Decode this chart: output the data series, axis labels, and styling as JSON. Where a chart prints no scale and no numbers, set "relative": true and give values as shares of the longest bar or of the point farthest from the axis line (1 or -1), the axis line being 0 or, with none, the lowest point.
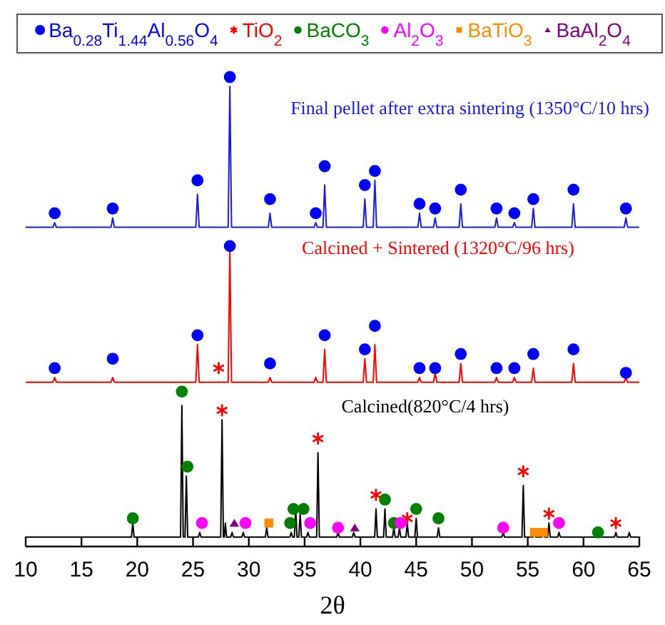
{
  "chart_data": {
    "type": "line",
    "relative": true,
    "xlabel": "2θ",
    "xlim": [
      10,
      65
    ],
    "xticks": [
      10,
      15,
      20,
      25,
      30,
      35,
      40,
      45,
      50,
      55,
      60,
      65
    ],
    "legend": "top",
    "series": [
      {
        "name": "Final pellet after extra sintering (1350°C/10 hrs)",
        "color": "#1a1ae6",
        "marker": "none",
        "x": [
          10,
          12.45,
          12.6,
          12.75,
          17.65,
          17.8,
          17.95,
          25.25,
          25.4,
          25.55,
          28.15,
          28.3,
          28.45,
          31.75,
          31.9,
          32.05,
          35.85,
          36.0,
          36.15,
          36.65,
          36.8,
          36.95,
          40.25,
          40.4,
          40.55,
          41.15,
          41.3,
          41.45,
          45.15,
          45.3,
          45.45,
          46.55,
          46.7,
          46.85,
          48.85,
          49.0,
          49.15,
          52.05,
          52.2,
          52.35,
          53.65,
          53.8,
          53.95,
          55.35,
          55.5,
          55.65,
          58.95,
          59.1,
          59.25,
          63.65,
          63.8,
          63.95,
          65
        ],
        "values": [
          0.68,
          0.68,
          0.69,
          0.68,
          0.68,
          0.7,
          0.68,
          0.68,
          0.75,
          0.68,
          0.68,
          0.98,
          0.68,
          0.68,
          0.71,
          0.68,
          0.68,
          0.69,
          0.68,
          0.68,
          0.77,
          0.68,
          0.68,
          0.74,
          0.68,
          0.68,
          0.78,
          0.68,
          0.68,
          0.71,
          0.68,
          0.68,
          0.7,
          0.68,
          0.68,
          0.73,
          0.68,
          0.68,
          0.7,
          0.68,
          0.68,
          0.69,
          0.68,
          0.68,
          0.72,
          0.68,
          0.68,
          0.73,
          0.68,
          0.68,
          0.7,
          0.68,
          0.68
        ]
      },
      {
        "name": "Calcined + Sintered (1320°C/96 hrs)",
        "color": "#ff0000",
        "marker": "none",
        "x": [
          10,
          12.45,
          12.6,
          12.75,
          17.65,
          17.8,
          17.95,
          25.25,
          25.4,
          25.55,
          28.15,
          28.3,
          28.45,
          31.75,
          31.9,
          32.05,
          35.85,
          36.0,
          36.15,
          36.65,
          36.8,
          36.95,
          40.25,
          40.4,
          40.55,
          41.15,
          41.3,
          41.45,
          45.15,
          45.3,
          45.45,
          46.55,
          46.7,
          46.85,
          48.85,
          49.0,
          49.15,
          52.05,
          52.2,
          52.35,
          53.65,
          53.8,
          53.95,
          55.35,
          55.5,
          55.65,
          58.95,
          59.1,
          59.25,
          63.65,
          63.8,
          63.95,
          65
        ],
        "values": [
          0.35,
          0.35,
          0.36,
          0.35,
          0.35,
          0.36,
          0.35,
          0.35,
          0.43,
          0.35,
          0.35,
          0.63,
          0.35,
          0.35,
          0.36,
          0.35,
          0.35,
          0.36,
          0.35,
          0.35,
          0.42,
          0.35,
          0.35,
          0.4,
          0.35,
          0.35,
          0.43,
          0.35,
          0.35,
          0.36,
          0.35,
          0.35,
          0.37,
          0.35,
          0.35,
          0.39,
          0.35,
          0.35,
          0.36,
          0.35,
          0.35,
          0.36,
          0.35,
          0.35,
          0.38,
          0.35,
          0.35,
          0.39,
          0.35,
          0.35,
          0.36,
          0.35,
          0.35
        ]
      },
      {
        "name": "Calcined(820°C/4 hrs)",
        "color": "#000000",
        "marker": "none",
        "x": [
          10,
          19.48,
          19.6,
          19.72,
          23.88,
          24.0,
          24.12,
          24.28,
          24.4,
          24.52,
          25.48,
          25.6,
          25.72,
          27.48,
          27.6,
          27.72,
          27.8,
          27.9,
          28.0,
          28.38,
          28.5,
          28.62,
          29.38,
          29.5,
          29.62,
          31.48,
          31.6,
          31.72,
          33.68,
          33.8,
          33.92,
          34.08,
          34.2,
          34.32,
          34.48,
          34.6,
          34.72,
          35.18,
          35.3,
          35.42,
          36.08,
          36.2,
          36.32,
          37.88,
          38.0,
          38.12,
          39.28,
          39.4,
          39.52,
          41.28,
          41.4,
          41.52,
          42.08,
          42.2,
          42.32,
          42.88,
          43.0,
          43.12,
          43.38,
          43.5,
          43.62,
          44.08,
          44.2,
          44.32,
          44.88,
          45.0,
          45.12,
          46.88,
          47.0,
          47.12,
          52.68,
          52.8,
          52.92,
          54.48,
          54.6,
          54.72,
          55.48,
          55.6,
          55.72,
          56.28,
          56.4,
          56.52,
          56.78,
          56.9,
          57.02,
          57.68,
          57.8,
          57.92,
          62.78,
          62.9,
          63.02,
          63.98,
          64.1,
          64.22,
          65
        ],
        "values": [
          0.02,
          0.02,
          0.05,
          0.02,
          0.02,
          0.3,
          0.02,
          0.02,
          0.15,
          0.02,
          0.02,
          0.03,
          0.02,
          0.02,
          0.27,
          0.02,
          0.02,
          0.05,
          0.02,
          0.02,
          0.03,
          0.02,
          0.02,
          0.03,
          0.02,
          0.02,
          0.04,
          0.02,
          0.02,
          0.03,
          0.02,
          0.02,
          0.08,
          0.02,
          0.02,
          0.07,
          0.02,
          0.02,
          0.03,
          0.02,
          0.02,
          0.2,
          0.02,
          0.02,
          0.03,
          0.02,
          0.02,
          0.03,
          0.02,
          0.02,
          0.08,
          0.02,
          0.02,
          0.08,
          0.02,
          0.02,
          0.04,
          0.02,
          0.02,
          0.04,
          0.02,
          0.02,
          0.05,
          0.02,
          0.02,
          0.06,
          0.02,
          0.02,
          0.04,
          0.02,
          0.02,
          0.03,
          0.02,
          0.02,
          0.13,
          0.02,
          0.02,
          0.03,
          0.02,
          0.02,
          0.03,
          0.02,
          0.02,
          0.05,
          0.02,
          0.02,
          0.03,
          0.02,
          0.02,
          0.03,
          0.02,
          0.02,
          0.03,
          0.02,
          0.02
        ]
      },
      {
        "type": "scatter",
        "name": "Ba$_{0.28}$Ti$_{1.44}$Al$_{0.56}$O$_{4}$",
        "color": "#0000ff",
        "marker": "circle",
        "x": [
          12.6,
          17.8,
          25.4,
          28.3,
          31.9,
          36.0,
          36.8,
          40.4,
          41.3,
          45.3,
          46.7,
          49.0,
          52.2,
          53.8,
          55.5,
          59.1,
          63.8,
          12.6,
          17.8,
          25.4,
          28.3,
          31.9,
          36.8,
          40.4,
          41.3,
          45.3,
          46.7,
          49.0,
          52.2,
          53.8,
          55.5,
          59.1,
          63.8
        ],
        "values": [
          0.71,
          0.72,
          0.78,
          1.0,
          0.74,
          0.71,
          0.81,
          0.77,
          0.8,
          0.73,
          0.72,
          0.76,
          0.72,
          0.71,
          0.74,
          0.76,
          0.72,
          0.38,
          0.4,
          0.45,
          0.64,
          0.39,
          0.45,
          0.42,
          0.47,
          0.38,
          0.38,
          0.41,
          0.38,
          0.38,
          0.41,
          0.42,
          0.37
        ]
      },
      {
        "type": "scatter",
        "name": "TiO$_{2}$",
        "color": "#ff0000",
        "marker": "cross",
        "x": [
          27.3,
          27.6,
          36.2,
          41.4,
          44.2,
          54.6,
          56.9,
          62.9
        ],
        "values": [
          0.38,
          0.29,
          0.23,
          0.11,
          0.06,
          0.16,
          0.07,
          0.05
        ]
      },
      {
        "type": "scatter",
        "name": "BaCO$_{3}$",
        "color": "#008000",
        "marker": "circle",
        "x": [
          19.6,
          24.0,
          24.5,
          33.7,
          34.0,
          34.9,
          42.2,
          43.0,
          45.0,
          47.0,
          61.3
        ],
        "values": [
          0.06,
          0.33,
          0.17,
          0.05,
          0.08,
          0.08,
          0.1,
          0.05,
          0.08,
          0.06,
          0.03
        ]
      },
      {
        "type": "scatter",
        "name": "Al$_{2}$O$_{3}$",
        "color": "#ff00ff",
        "marker": "circle",
        "x": [
          25.8,
          29.7,
          35.5,
          38.0,
          43.6,
          52.8,
          57.8
        ],
        "values": [
          0.05,
          0.05,
          0.05,
          0.04,
          0.05,
          0.04,
          0.05
        ]
      },
      {
        "type": "scatter",
        "name": "BaTiO$_{3}$",
        "color": "#ff8c00",
        "marker": "square",
        "x": [
          31.8,
          55.6,
          56.4
        ],
        "values": [
          0.05,
          0.03,
          0.03
        ]
      },
      {
        "type": "scatter",
        "name": "BaAl$_{2}$O$_{4}$",
        "color": "#800080",
        "marker": "triangle",
        "x": [
          28.7,
          39.5
        ],
        "values": [
          0.05,
          0.04
        ]
      }
    ]
  }
}
